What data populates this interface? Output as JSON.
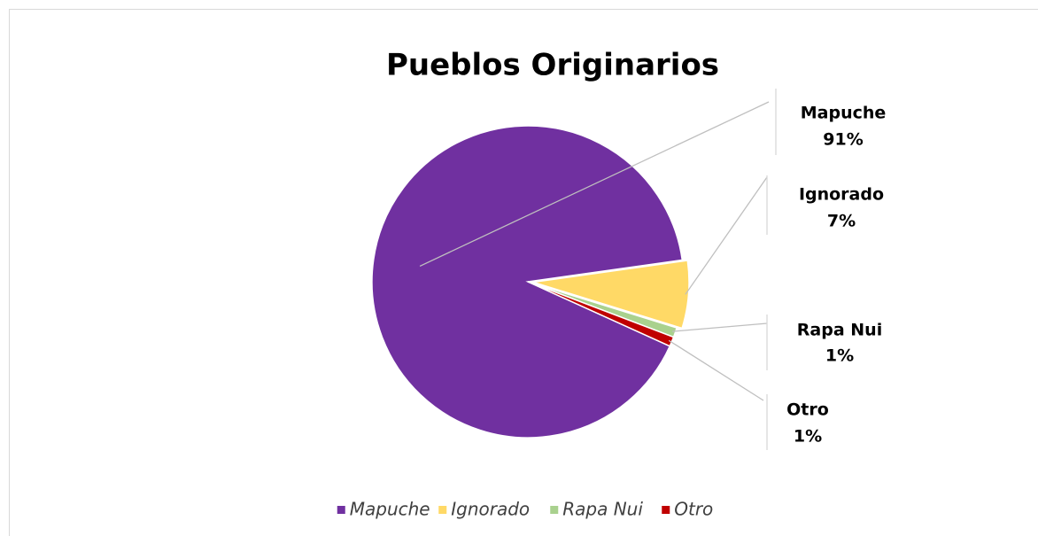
{
  "chart_data": {
    "type": "pie",
    "title": "Pueblos Originarios",
    "categories": [
      "Mapuche",
      "Ignorado",
      "Rapa Nui",
      "Otro"
    ],
    "values": [
      91,
      7,
      1,
      1
    ],
    "value_labels": [
      "91%",
      "7%",
      "1%",
      "1%"
    ],
    "colors": [
      "#7030a0",
      "#ffd966",
      "#a9d18e",
      "#c00000"
    ],
    "legend": "bottom"
  }
}
